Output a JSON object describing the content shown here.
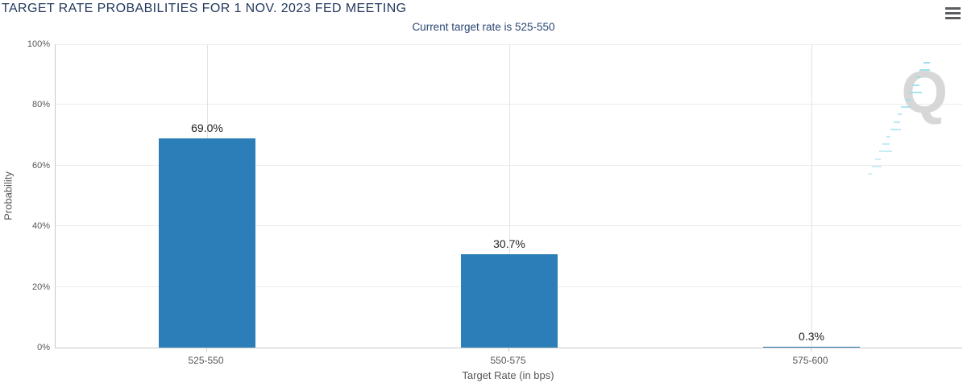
{
  "header": {
    "title": "TARGET RATE PROBABILITIES FOR 1 NOV. 2023 FED MEETING",
    "subtitle": "Current target rate is 525-550",
    "menu_icon": "hamburger-icon"
  },
  "chart_data": {
    "type": "bar",
    "title": "TARGET RATE PROBABILITIES FOR 1 NOV. 2023 FED MEETING",
    "subtitle": "Current target rate is 525-550",
    "categories": [
      "525-550",
      "550-575",
      "575-600"
    ],
    "values": [
      69.0,
      30.7,
      0.3
    ],
    "bar_labels": [
      "69.0%",
      "30.7%",
      "0.3%"
    ],
    "xlabel": "Target Rate (in bps)",
    "ylabel": "Probability",
    "ylim": [
      0,
      100
    ],
    "yticks": [
      0,
      20,
      40,
      60,
      80,
      100
    ],
    "ytick_suffix": "%",
    "grid": true,
    "legend": false
  },
  "watermark": {
    "letter": "Q"
  },
  "colors": {
    "title_text": "#24395e",
    "subtitle_text": "#2a4673",
    "axis_text": "#55575a",
    "bar": "#2c7eb8",
    "bar_label_text": "#222222",
    "gridline": "#ececec",
    "axis_line": "#c9c9c9",
    "watermark_q": "#d7d7d7",
    "watermark_streak": "#9adfe9",
    "menu_icon": "#5c5d5f"
  }
}
